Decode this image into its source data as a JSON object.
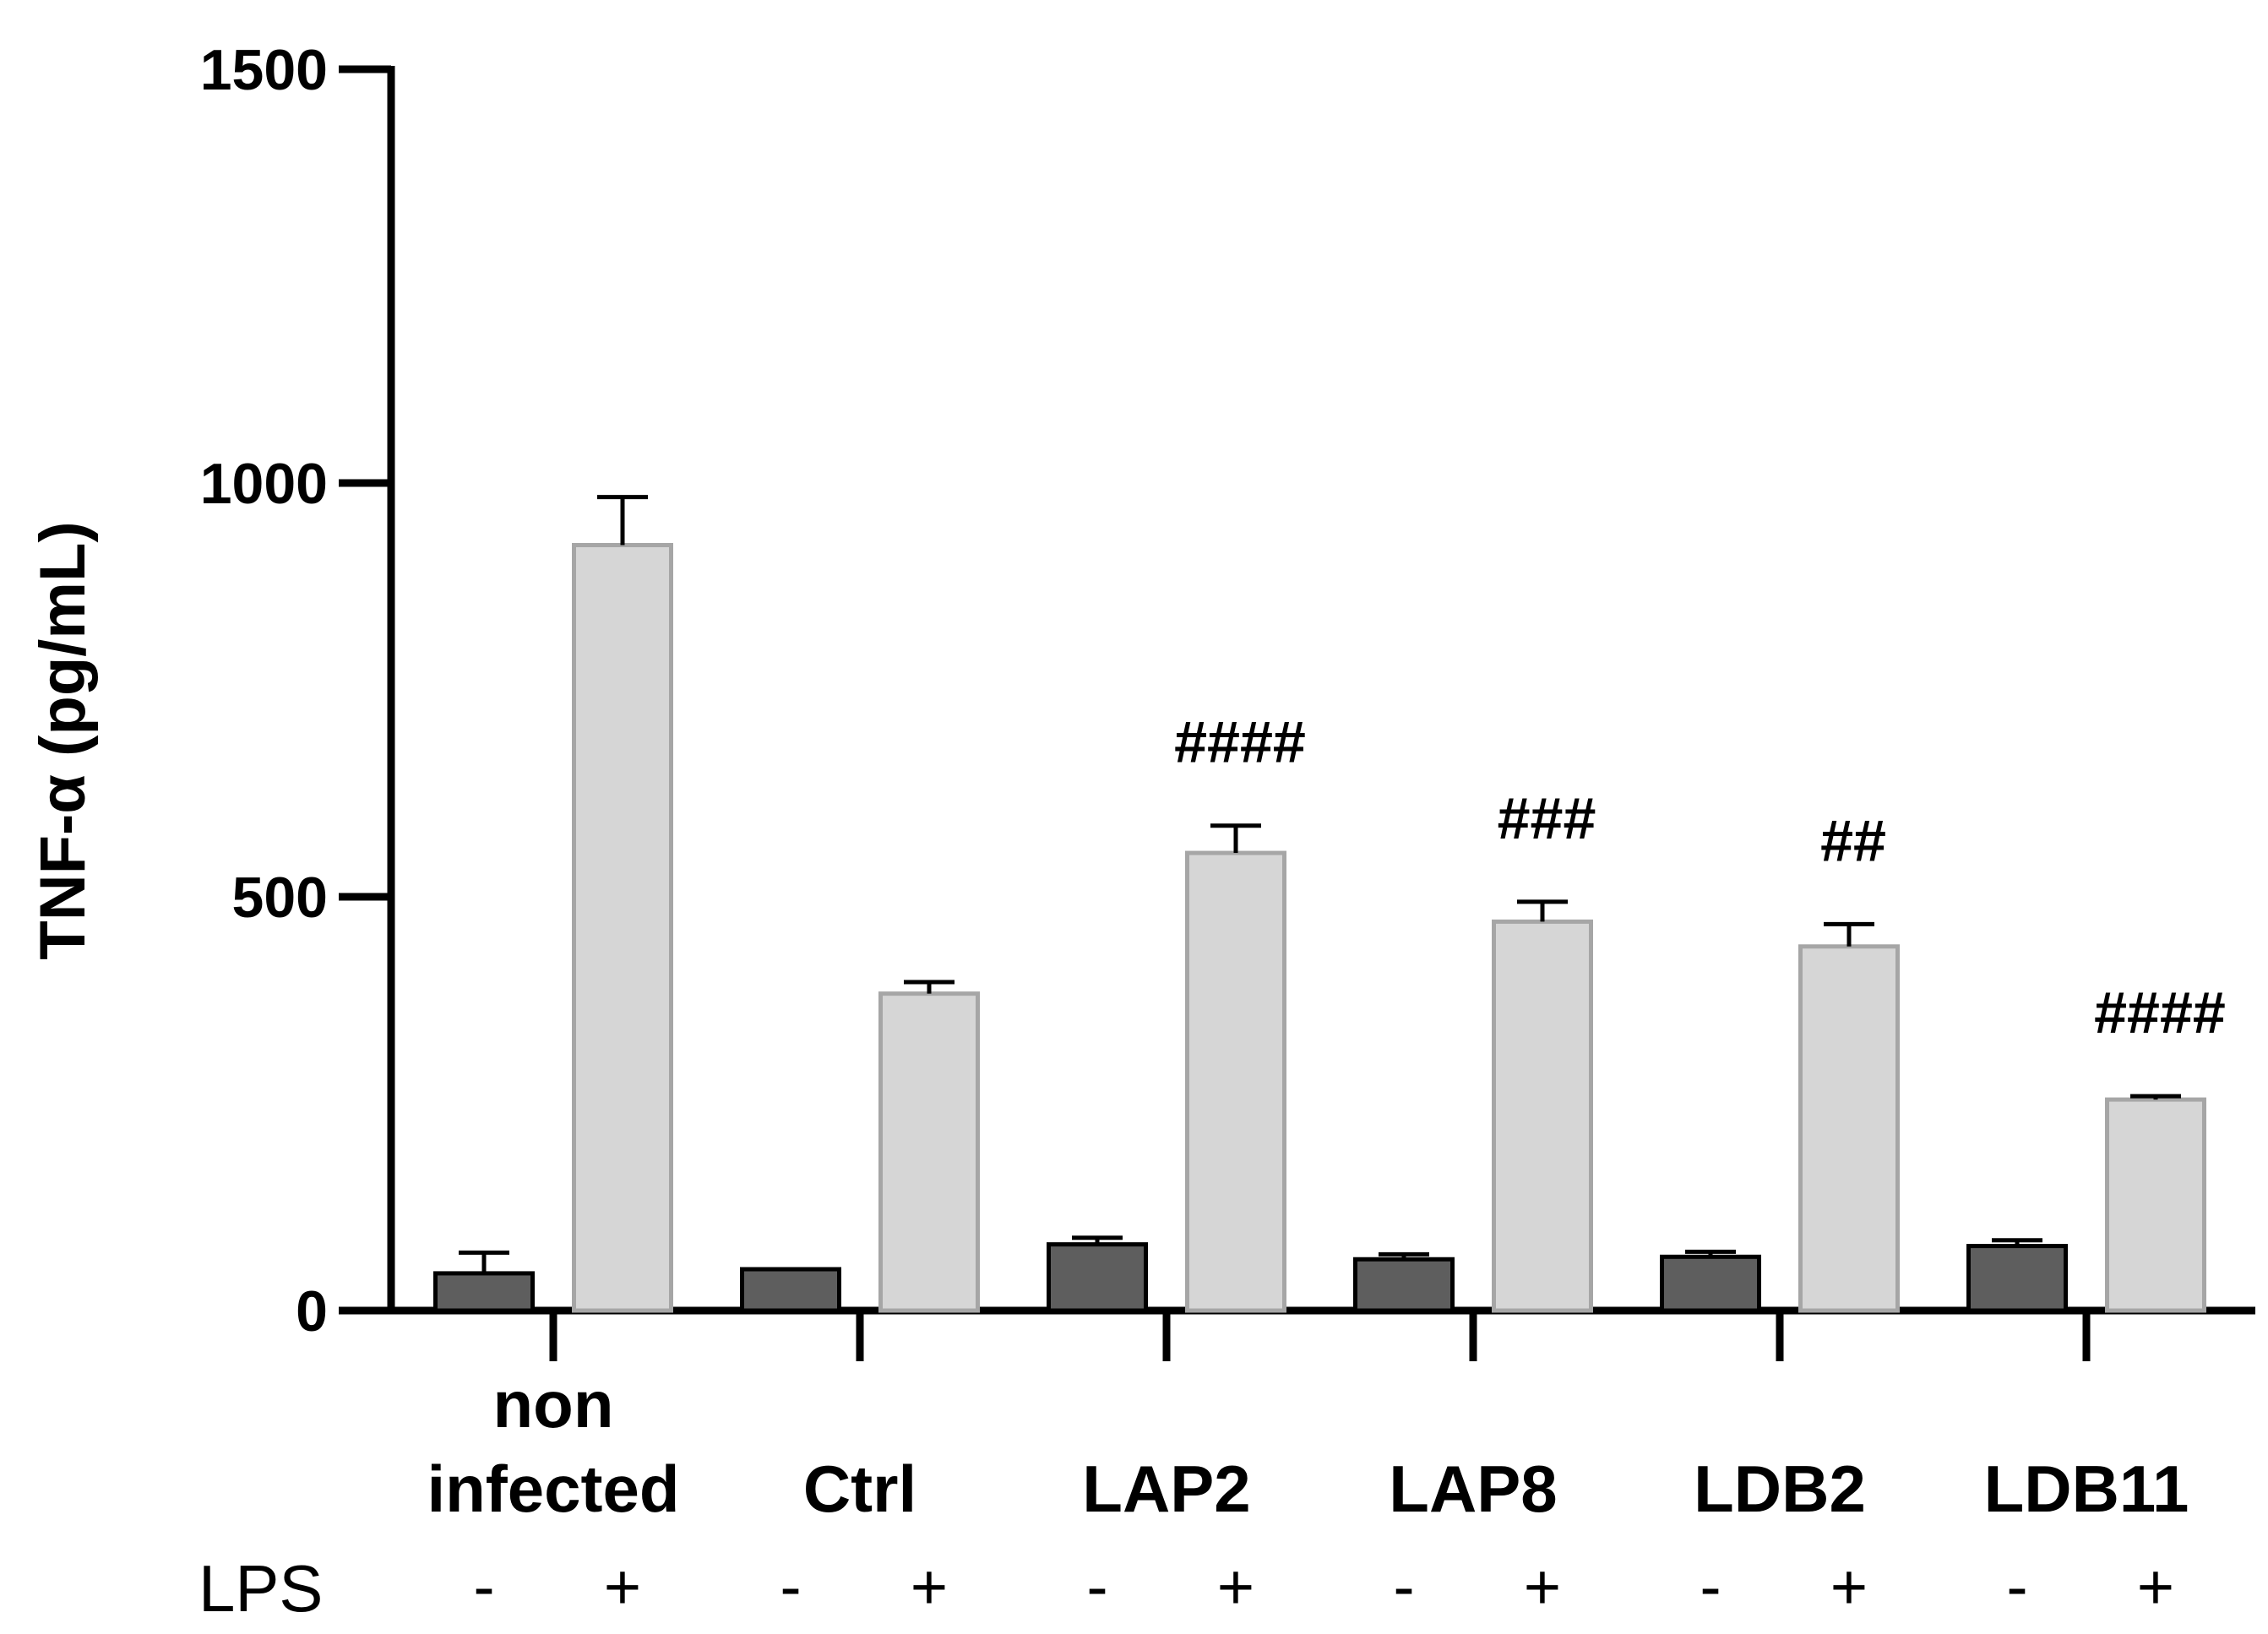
{
  "chart_data": {
    "type": "bar",
    "title": "",
    "xlabel": "",
    "ylabel": "TNF-α (pg/mL)",
    "ylim": [
      0,
      1500
    ],
    "yticks": [
      "0",
      "500",
      "1000",
      "1500"
    ],
    "grid": false,
    "categories": [
      {
        "lines": [
          "non",
          "infected"
        ]
      },
      {
        "lines": [
          "Ctrl"
        ]
      },
      {
        "lines": [
          "LAP2"
        ]
      },
      {
        "lines": [
          "LAP8"
        ]
      },
      {
        "lines": [
          "LDB2"
        ]
      },
      {
        "lines": [
          "LDB11"
        ]
      }
    ],
    "series": [
      {
        "name": "LPS -",
        "sign": "-",
        "color": "#5e5e5e",
        "edge": "#000000",
        "values": [
          45,
          50,
          80,
          62,
          65,
          78
        ],
        "errors": [
          25,
          0,
          8,
          6,
          6,
          7
        ]
      },
      {
        "name": "LPS +",
        "sign": "+",
        "color": "#d6d6d6",
        "edge": "#a6a6a6",
        "values": [
          925,
          383,
          553,
          470,
          440,
          255
        ],
        "errors": [
          58,
          14,
          33,
          24,
          27,
          4
        ]
      }
    ],
    "annotations": [
      "",
      "",
      "####",
      "###",
      "##",
      "####"
    ],
    "row_label": "LPS"
  }
}
